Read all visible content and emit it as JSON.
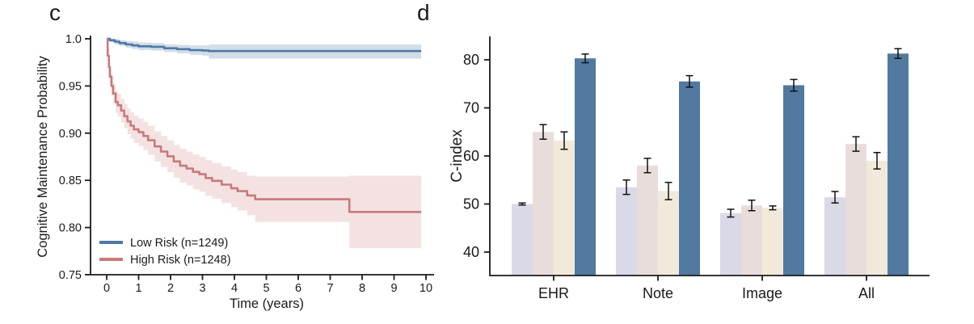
{
  "panels": {
    "c": {
      "label": "c"
    },
    "d": {
      "label": "d"
    }
  },
  "colors": {
    "axis": "#1a1a1a",
    "text": "#1a1a1a",
    "low_risk_line": "#4d78a5",
    "low_risk_band": "#cdd9e7",
    "high_risk_line": "#c97a7a",
    "high_risk_band": "#f3dfe0",
    "bar_series": [
      "#d9d9e7",
      "#e9dddc",
      "#f1e9da",
      "#52799f"
    ],
    "error_bar": "#111111"
  },
  "chart_data": [
    {
      "type": "line",
      "subtype": "kaplan-meier-step",
      "panel": "c",
      "xlabel": "Time (years)",
      "ylabel": "Cognitive Maintenance Probability",
      "xlim": [
        0,
        10
      ],
      "ylim": [
        0.75,
        1.0
      ],
      "xticks": [
        {
          "v": 0,
          "label": "0"
        },
        {
          "v": 1,
          "label": "1"
        },
        {
          "v": 2,
          "label": "2"
        },
        {
          "v": 3,
          "label": "3"
        },
        {
          "v": 4,
          "label": "4"
        },
        {
          "v": 5,
          "label": "5"
        },
        {
          "v": 6,
          "label": "6"
        },
        {
          "v": 7,
          "label": "7"
        },
        {
          "v": 8,
          "label": "8"
        },
        {
          "v": 9,
          "label": "9"
        },
        {
          "v": 10,
          "label": "10"
        }
      ],
      "yticks": [
        {
          "v": 1.0,
          "label": "1.0"
        },
        {
          "v": 0.95,
          "label": "0.95"
        },
        {
          "v": 0.9,
          "label": "0.90"
        },
        {
          "v": 0.85,
          "label": "0.85"
        },
        {
          "v": 0.8,
          "label": "0.80"
        },
        {
          "v": 0.75,
          "label": "0.75"
        }
      ],
      "legend_position": "lower left",
      "grid": false,
      "series": [
        {
          "name": "Low Risk (n=1249)",
          "color_key": "low_risk",
          "points": [
            [
              0.0,
              1.0,
              1.0,
              1.0
            ],
            [
              0.1,
              0.9985,
              0.9965,
              1.0
            ],
            [
              0.25,
              0.997,
              0.994,
              1.0
            ],
            [
              0.4,
              0.9955,
              0.9925,
              0.9985
            ],
            [
              0.6,
              0.994,
              0.9905,
              0.9975
            ],
            [
              0.8,
              0.993,
              0.989,
              0.997
            ],
            [
              1.0,
              0.992,
              0.988,
              0.996
            ],
            [
              1.4,
              0.9915,
              0.9875,
              0.9955
            ],
            [
              1.8,
              0.99,
              0.986,
              0.994
            ],
            [
              2.2,
              0.989,
              0.9845,
              0.9935
            ],
            [
              2.6,
              0.988,
              0.983,
              0.993
            ],
            [
              3.0,
              0.9875,
              0.982,
              0.993
            ],
            [
              3.2,
              0.987,
              0.979,
              0.994
            ],
            [
              9.85,
              0.987,
              0.979,
              0.994
            ]
          ]
        },
        {
          "name": "High Risk (n=1248)",
          "color_key": "high_risk",
          "points": [
            [
              0.0,
              1.0,
              1.0,
              1.0
            ],
            [
              0.03,
              0.982,
              0.9745,
              0.9895
            ],
            [
              0.07,
              0.97,
              0.9615,
              0.9785
            ],
            [
              0.1,
              0.96,
              0.9505,
              0.9695
            ],
            [
              0.15,
              0.95,
              0.9395,
              0.9605
            ],
            [
              0.2,
              0.942,
              0.931,
              0.953
            ],
            [
              0.28,
              0.933,
              0.9215,
              0.9445
            ],
            [
              0.35,
              0.9295,
              0.9175,
              0.9415
            ],
            [
              0.45,
              0.924,
              0.9115,
              0.9365
            ],
            [
              0.55,
              0.918,
              0.905,
              0.931
            ],
            [
              0.65,
              0.9125,
              0.899,
              0.926
            ],
            [
              0.75,
              0.908,
              0.894,
              0.922
            ],
            [
              0.85,
              0.904,
              0.8895,
              0.9185
            ],
            [
              1.0,
              0.901,
              0.8865,
              0.9155
            ],
            [
              1.15,
              0.897,
              0.882,
              0.912
            ],
            [
              1.3,
              0.8925,
              0.877,
              0.908
            ],
            [
              1.5,
              0.886,
              0.87,
              0.902
            ],
            [
              1.7,
              0.8805,
              0.864,
              0.897
            ],
            [
              1.9,
              0.8755,
              0.8585,
              0.8925
            ],
            [
              2.1,
              0.87,
              0.8525,
              0.8875
            ],
            [
              2.3,
              0.8655,
              0.8475,
              0.8835
            ],
            [
              2.5,
              0.8625,
              0.8445,
              0.8805
            ],
            [
              2.7,
              0.859,
              0.8405,
              0.8775
            ],
            [
              2.9,
              0.8565,
              0.838,
              0.875
            ],
            [
              3.1,
              0.8525,
              0.8335,
              0.8715
            ],
            [
              3.3,
              0.8495,
              0.8305,
              0.8685
            ],
            [
              3.6,
              0.8455,
              0.826,
              0.865
            ],
            [
              3.9,
              0.8415,
              0.8215,
              0.8615
            ],
            [
              4.1,
              0.8385,
              0.818,
              0.859
            ],
            [
              4.4,
              0.834,
              0.813,
              0.855
            ],
            [
              4.65,
              0.83,
              0.806,
              0.854
            ],
            [
              7.55,
              0.83,
              0.806,
              0.854
            ],
            [
              7.6,
              0.8165,
              0.778,
              0.855
            ],
            [
              9.85,
              0.8165,
              0.778,
              0.855
            ]
          ]
        }
      ]
    },
    {
      "type": "bar",
      "panel": "d",
      "xlabel": "",
      "ylabel": "C-index",
      "categories": [
        "EHR",
        "Note",
        "Image",
        "All"
      ],
      "ylim": [
        35,
        85
      ],
      "yticks": [
        {
          "v": 40,
          "label": "40"
        },
        {
          "v": 50,
          "label": "50"
        },
        {
          "v": 60,
          "label": "60"
        },
        {
          "v": 70,
          "label": "70"
        },
        {
          "v": 80,
          "label": "80"
        }
      ],
      "grid": false,
      "legend_position": "none",
      "series": [
        {
          "values": [
            50.0,
            53.5,
            48.1,
            51.4
          ],
          "errors": [
            0.2,
            1.5,
            0.8,
            1.2
          ]
        },
        {
          "values": [
            65.0,
            58.0,
            49.7,
            62.5
          ],
          "errors": [
            1.5,
            1.5,
            1.1,
            1.5
          ]
        },
        {
          "values": [
            63.2,
            52.7,
            49.2,
            59.0
          ],
          "errors": [
            1.8,
            1.8,
            0.4,
            1.7
          ]
        },
        {
          "values": [
            80.3,
            75.5,
            74.7,
            81.3
          ],
          "errors": [
            0.9,
            1.2,
            1.2,
            1.0
          ]
        }
      ]
    }
  ]
}
